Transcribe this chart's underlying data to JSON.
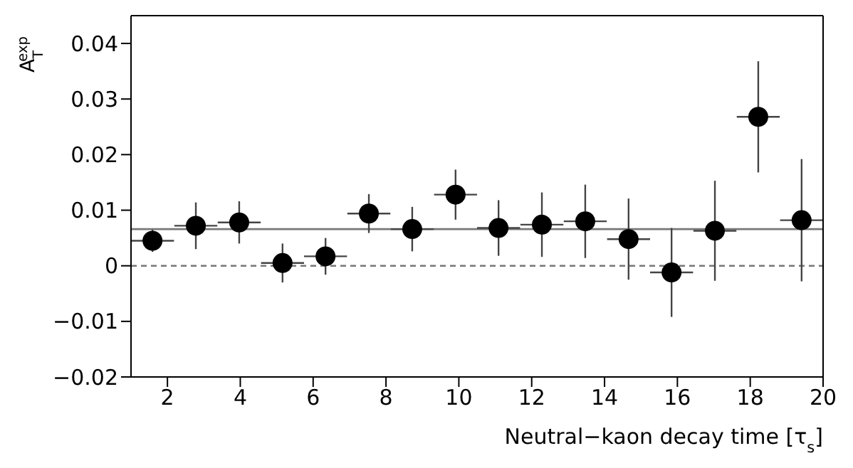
{
  "chart_data": {
    "type": "scatter",
    "xlabel": "Neutral−kaon decay time  [τ$_{s}$]",
    "ylabel": "A$_{T}$$^{exp}$",
    "x": [
      1.59,
      2.78,
      3.97,
      5.16,
      6.34,
      7.53,
      8.72,
      9.91,
      11.09,
      12.28,
      13.47,
      14.66,
      15.84,
      17.03,
      18.22,
      19.41
    ],
    "series": [
      {
        "color": "#000000",
        "values": [
          0.0045,
          0.0072,
          0.0078,
          0.0005,
          0.0017,
          0.0094,
          0.0066,
          0.0128,
          0.0068,
          0.0074,
          0.008,
          0.0048,
          -0.0012,
          0.0063,
          0.0268,
          0.0082
        ],
        "errors": [
          0.002,
          0.0042,
          0.0038,
          0.0035,
          0.0033,
          0.0035,
          0.004,
          0.0045,
          0.005,
          0.0058,
          0.0066,
          0.0073,
          0.008,
          0.009,
          0.01,
          0.011
        ],
        "xerrors": [
          0.59,
          0.59,
          0.59,
          0.59,
          0.59,
          0.59,
          0.59,
          0.59,
          0.59,
          0.59,
          0.59,
          0.59,
          0.59,
          0.59,
          0.59,
          0.59
        ]
      }
    ],
    "xlim": [
      1,
      20
    ],
    "xticks": [
      2,
      4,
      6,
      8,
      10,
      12,
      14,
      16,
      18,
      20
    ],
    "ylim": [
      -0.02,
      0.045
    ],
    "yticks": [
      -0.02,
      -0.01,
      0,
      0.01,
      0.02,
      0.03,
      0.04
    ],
    "ref_lines": [
      {
        "axis": "y",
        "value": 0.0066,
        "color": "#777777",
        "line_style": "solid"
      },
      {
        "axis": "y",
        "value": 0,
        "color": "#777777",
        "line_style": "dashed"
      }
    ],
    "marker": "circle"
  }
}
